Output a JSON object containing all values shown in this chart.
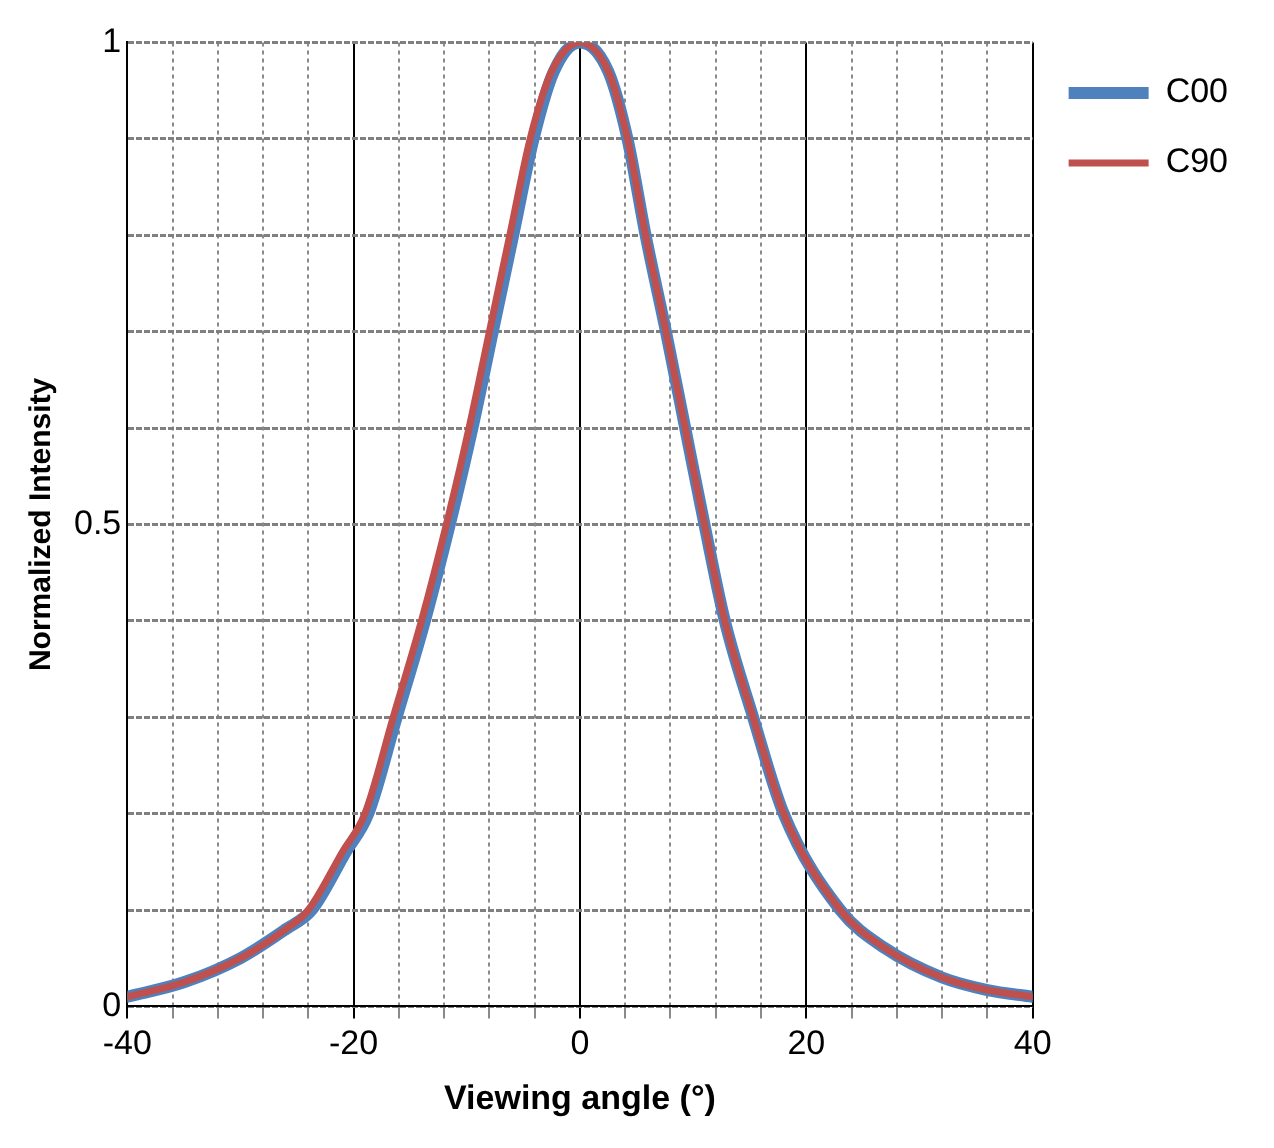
{
  "chart_data": {
    "type": "line",
    "xlabel": "Viewing angle (°)",
    "ylabel": "Normalized Intensity",
    "xlim": [
      -40,
      40
    ],
    "ylim": [
      0,
      1
    ],
    "xticks": [
      -40,
      {
        "value": -36,
        "label": null
      },
      {
        "value": -32,
        "label": null
      },
      {
        "value": -28,
        "label": null
      },
      {
        "value": -24,
        "label": null
      },
      -20,
      {
        "value": -16,
        "label": null
      },
      {
        "value": -12,
        "label": null
      },
      {
        "value": -8,
        "label": null
      },
      {
        "value": -4,
        "label": null
      },
      0,
      {
        "value": 4,
        "label": null
      },
      {
        "value": 8,
        "label": null
      },
      {
        "value": 12,
        "label": null
      },
      {
        "value": 16,
        "label": null
      },
      20,
      {
        "value": 24,
        "label": null
      },
      {
        "value": 28,
        "label": null
      },
      {
        "value": 32,
        "label": null
      },
      {
        "value": 36,
        "label": null
      },
      40
    ],
    "yticks": [
      0,
      {
        "value": 0.1,
        "label": null
      },
      {
        "value": 0.2,
        "label": null
      },
      {
        "value": 0.3,
        "label": null
      },
      {
        "value": 0.4,
        "label": null
      },
      0.5,
      {
        "value": 0.6,
        "label": null
      },
      {
        "value": 0.7,
        "label": null
      },
      {
        "value": 0.8,
        "label": null
      },
      {
        "value": 0.9,
        "label": null
      },
      1
    ],
    "grid": true,
    "legend": "top right",
    "marker": "none",
    "line_style": "solid",
    "series": [
      {
        "name": "C00",
        "color": "#4f81bd",
        "x": [
          -40,
          -35,
          -30,
          -26,
          -23.7,
          -20.7,
          -18.7,
          -16.2,
          -13.7,
          -11.5,
          -9.5,
          -7.7,
          -5.9,
          -4.1,
          -2.3,
          0,
          2.5,
          4.2,
          5.8,
          7.6,
          9.3,
          11,
          12.8,
          15.3,
          18,
          23,
          27,
          32,
          36,
          40
        ],
        "values": [
          0.01,
          0.025,
          0.05,
          0.08,
          0.1,
          0.16,
          0.2,
          0.3,
          0.4,
          0.5,
          0.6,
          0.7,
          0.8,
          0.9,
          0.97,
          1,
          0.97,
          0.9,
          0.8,
          0.7,
          0.6,
          0.5,
          0.4,
          0.3,
          0.2,
          0.1,
          0.06,
          0.03,
          0.017,
          0.01
        ]
      },
      {
        "name": "C90",
        "color": "#c0504d",
        "x": [
          -40,
          -35,
          -30,
          -26,
          -24,
          -21,
          -19,
          -16.5,
          -14,
          -11.8,
          -9.8,
          -8,
          -6.2,
          -4.4,
          -2.5,
          0,
          2.5,
          4.2,
          5.8,
          7.6,
          9.3,
          11,
          12.8,
          15.3,
          18,
          23,
          27,
          32,
          36,
          40
        ],
        "values": [
          0.01,
          0.025,
          0.05,
          0.08,
          0.1,
          0.16,
          0.2,
          0.3,
          0.4,
          0.5,
          0.6,
          0.7,
          0.8,
          0.9,
          0.97,
          1,
          0.97,
          0.9,
          0.8,
          0.7,
          0.6,
          0.5,
          0.4,
          0.3,
          0.2,
          0.1,
          0.06,
          0.03,
          0.017,
          0.01
        ]
      }
    ]
  }
}
